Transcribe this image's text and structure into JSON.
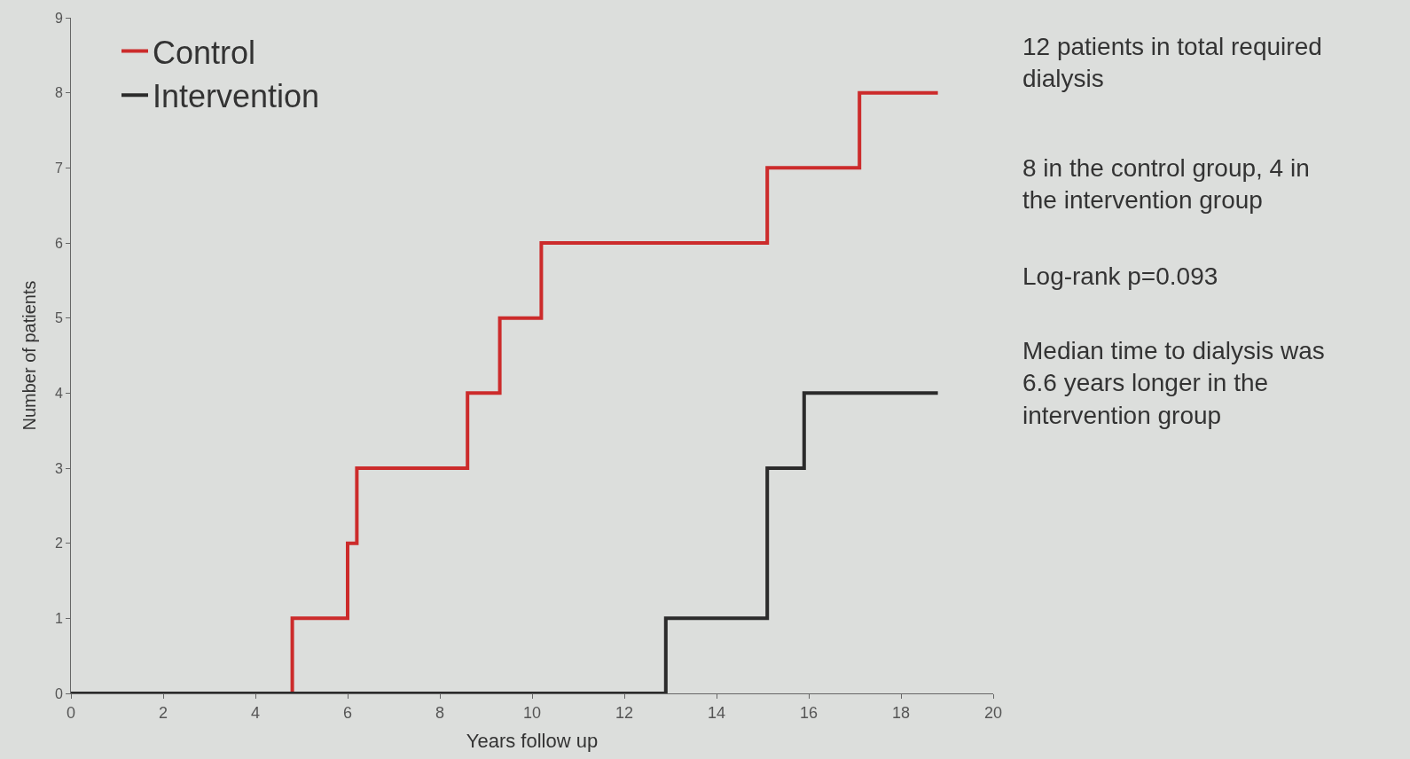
{
  "chart_data": {
    "type": "step",
    "xlabel": "Years follow up",
    "ylabel": "Number of patients",
    "series": [
      {
        "name": "Control",
        "color": "#cc2b2b",
        "x": [
          0,
          4.8,
          6.0,
          6.2,
          8.6,
          9.3,
          10.2,
          15.1,
          17.1,
          18.8
        ],
        "values": [
          0,
          1,
          2,
          3,
          4,
          5,
          6,
          7,
          8,
          8
        ]
      },
      {
        "name": "Intervention",
        "color": "#2b2b2b",
        "x": [
          0,
          12.9,
          15.1,
          15.9,
          18.8
        ],
        "values": [
          0,
          1,
          3,
          4,
          4
        ]
      }
    ],
    "xlim": [
      0,
      20
    ],
    "xticks": [
      0,
      2,
      4,
      6,
      8,
      10,
      12,
      14,
      16,
      18,
      20
    ],
    "ylim": [
      0,
      9
    ],
    "yticks": [
      0,
      1,
      2,
      3,
      4,
      5,
      6,
      7,
      8,
      9
    ],
    "grid": false,
    "legend": "top left",
    "marker": "none",
    "line_style": "solid",
    "annotations": [
      "12 patients in total required dialysis",
      "8 in the control group, 4 in the intervention group",
      "Log-rank p=0.093",
      "Median time to dialysis was 6.6 years longer in the intervention group"
    ]
  }
}
